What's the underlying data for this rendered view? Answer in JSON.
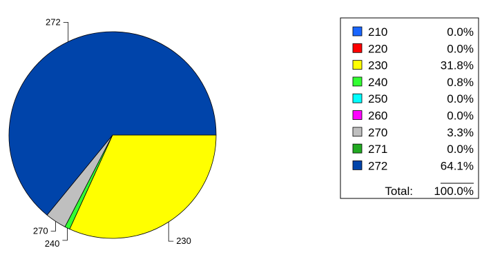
{
  "chart_data": {
    "type": "pie",
    "slices": [
      {
        "label": "210",
        "value": 0.0,
        "percent_text": "0.0%",
        "color": "#1a66ff"
      },
      {
        "label": "220",
        "value": 0.0,
        "percent_text": "0.0%",
        "color": "#ff0000"
      },
      {
        "label": "230",
        "value": 31.8,
        "percent_text": "31.8%",
        "color": "#ffff00"
      },
      {
        "label": "240",
        "value": 0.8,
        "percent_text": "0.8%",
        "color": "#33ff33"
      },
      {
        "label": "250",
        "value": 0.0,
        "percent_text": "0.0%",
        "color": "#00ffff"
      },
      {
        "label": "260",
        "value": 0.0,
        "percent_text": "0.0%",
        "color": "#ff00ff"
      },
      {
        "label": "270",
        "value": 3.3,
        "percent_text": "3.3%",
        "color": "#bfbfbf"
      },
      {
        "label": "271",
        "value": 0.0,
        "percent_text": "0.0%",
        "color": "#22aa22"
      },
      {
        "label": "272",
        "value": 64.1,
        "percent_text": "64.1%",
        "color": "#0044aa"
      }
    ],
    "total_label": "Total:",
    "total_text": "100.0%",
    "legend_position": "right"
  }
}
